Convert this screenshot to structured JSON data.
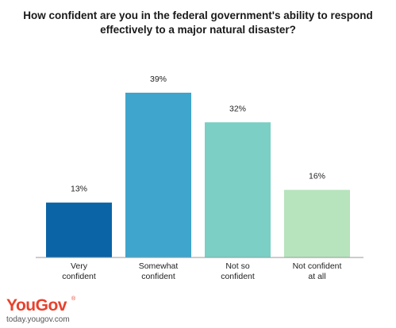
{
  "chart_data": {
    "type": "bar",
    "title_lines": [
      "How confident are you in the federal government's ability to respond",
      "effectively to a major natural disaster?"
    ],
    "categories": [
      [
        "Very",
        "confident"
      ],
      [
        "Somewhat",
        "confident"
      ],
      [
        "Not so",
        "confident"
      ],
      [
        "Not confident",
        "at all"
      ]
    ],
    "values": [
      13,
      39,
      32,
      16
    ],
    "value_labels": [
      "13%",
      "39%",
      "32%",
      "16%"
    ],
    "colors": [
      "#0a64a6",
      "#3fa5cc",
      "#7bcfc5",
      "#b7e3bd"
    ],
    "ylim": [
      0,
      45
    ],
    "grid": false,
    "axis_line_color": "#999999"
  },
  "branding": {
    "logo_text": "YouGov",
    "logo_color": "#e8412c",
    "registered_mark": "®",
    "url": "today.yougov.com"
  }
}
